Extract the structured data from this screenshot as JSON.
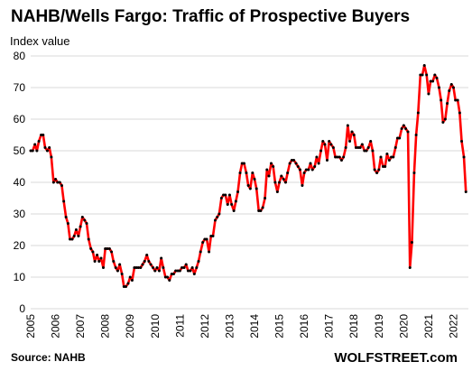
{
  "chart_data": {
    "type": "line",
    "title": "NAHB/Wells Fargo: Traffic of Prospective Buyers",
    "ylabel": "Index value",
    "xlabel": "",
    "ylim": [
      0,
      80
    ],
    "yticks": [
      0,
      10,
      20,
      30,
      40,
      50,
      60,
      70,
      80
    ],
    "xlim": [
      2005,
      2022.6
    ],
    "xticks": [
      "2005",
      "2006",
      "2007",
      "2008",
      "2009",
      "2010",
      "2011",
      "2012",
      "2013",
      "2014",
      "2015",
      "2016",
      "2017",
      "2018",
      "2019",
      "2020",
      "2021",
      "2022"
    ],
    "grid": true,
    "line_color": "#ff0000",
    "marker_color": "#000000",
    "series": [
      {
        "name": "",
        "points": [
          [
            2005.0,
            50
          ],
          [
            2005.08,
            50
          ],
          [
            2005.17,
            52
          ],
          [
            2005.25,
            50
          ],
          [
            2005.33,
            53
          ],
          [
            2005.42,
            55
          ],
          [
            2005.5,
            55
          ],
          [
            2005.58,
            51
          ],
          [
            2005.67,
            50
          ],
          [
            2005.75,
            51
          ],
          [
            2005.83,
            48
          ],
          [
            2005.92,
            40
          ],
          [
            2006.0,
            41
          ],
          [
            2006.08,
            40
          ],
          [
            2006.17,
            40
          ],
          [
            2006.25,
            39
          ],
          [
            2006.33,
            34
          ],
          [
            2006.42,
            29
          ],
          [
            2006.5,
            27
          ],
          [
            2006.58,
            22
          ],
          [
            2006.67,
            22
          ],
          [
            2006.75,
            23
          ],
          [
            2006.83,
            25
          ],
          [
            2006.92,
            23
          ],
          [
            2007.0,
            26
          ],
          [
            2007.08,
            29
          ],
          [
            2007.17,
            28
          ],
          [
            2007.25,
            27
          ],
          [
            2007.33,
            22
          ],
          [
            2007.42,
            19
          ],
          [
            2007.5,
            18
          ],
          [
            2007.58,
            15
          ],
          [
            2007.67,
            17
          ],
          [
            2007.75,
            15
          ],
          [
            2007.83,
            16
          ],
          [
            2007.92,
            13
          ],
          [
            2008.0,
            19
          ],
          [
            2008.08,
            19
          ],
          [
            2008.17,
            19
          ],
          [
            2008.25,
            18
          ],
          [
            2008.33,
            15
          ],
          [
            2008.42,
            13
          ],
          [
            2008.5,
            12
          ],
          [
            2008.58,
            14
          ],
          [
            2008.67,
            11
          ],
          [
            2008.75,
            7
          ],
          [
            2008.83,
            7
          ],
          [
            2008.92,
            8
          ],
          [
            2009.0,
            10
          ],
          [
            2009.08,
            9
          ],
          [
            2009.17,
            13
          ],
          [
            2009.25,
            13
          ],
          [
            2009.33,
            13
          ],
          [
            2009.42,
            13
          ],
          [
            2009.5,
            14
          ],
          [
            2009.58,
            15
          ],
          [
            2009.67,
            17
          ],
          [
            2009.75,
            15
          ],
          [
            2009.83,
            14
          ],
          [
            2009.92,
            13
          ],
          [
            2010.0,
            12
          ],
          [
            2010.08,
            13
          ],
          [
            2010.17,
            12
          ],
          [
            2010.25,
            16
          ],
          [
            2010.33,
            13
          ],
          [
            2010.42,
            10
          ],
          [
            2010.5,
            10
          ],
          [
            2010.58,
            9
          ],
          [
            2010.67,
            11
          ],
          [
            2010.75,
            11
          ],
          [
            2010.83,
            12
          ],
          [
            2010.92,
            12
          ],
          [
            2011.0,
            12
          ],
          [
            2011.08,
            13
          ],
          [
            2011.17,
            13
          ],
          [
            2011.25,
            14
          ],
          [
            2011.33,
            12
          ],
          [
            2011.42,
            12
          ],
          [
            2011.5,
            13
          ],
          [
            2011.58,
            11
          ],
          [
            2011.67,
            13
          ],
          [
            2011.75,
            15
          ],
          [
            2011.83,
            18
          ],
          [
            2011.92,
            21
          ],
          [
            2012.0,
            22
          ],
          [
            2012.08,
            22
          ],
          [
            2012.17,
            18
          ],
          [
            2012.25,
            23
          ],
          [
            2012.33,
            23
          ],
          [
            2012.42,
            28
          ],
          [
            2012.5,
            29
          ],
          [
            2012.58,
            30
          ],
          [
            2012.67,
            35
          ],
          [
            2012.75,
            36
          ],
          [
            2012.83,
            36
          ],
          [
            2012.92,
            33
          ],
          [
            2013.0,
            36
          ],
          [
            2013.08,
            33
          ],
          [
            2013.17,
            31
          ],
          [
            2013.25,
            34
          ],
          [
            2013.33,
            37
          ],
          [
            2013.42,
            43
          ],
          [
            2013.5,
            46
          ],
          [
            2013.58,
            46
          ],
          [
            2013.67,
            43
          ],
          [
            2013.75,
            39
          ],
          [
            2013.83,
            38
          ],
          [
            2013.92,
            43
          ],
          [
            2014.0,
            41
          ],
          [
            2014.08,
            38
          ],
          [
            2014.17,
            31
          ],
          [
            2014.25,
            31
          ],
          [
            2014.33,
            32
          ],
          [
            2014.42,
            35
          ],
          [
            2014.5,
            44
          ],
          [
            2014.58,
            42
          ],
          [
            2014.67,
            46
          ],
          [
            2014.75,
            45
          ],
          [
            2014.83,
            40
          ],
          [
            2014.92,
            37
          ],
          [
            2015.0,
            40
          ],
          [
            2015.08,
            42
          ],
          [
            2015.17,
            41
          ],
          [
            2015.25,
            40
          ],
          [
            2015.33,
            43
          ],
          [
            2015.42,
            46
          ],
          [
            2015.5,
            47
          ],
          [
            2015.58,
            47
          ],
          [
            2015.67,
            46
          ],
          [
            2015.75,
            45
          ],
          [
            2015.83,
            44
          ],
          [
            2015.92,
            39
          ],
          [
            2016.0,
            43
          ],
          [
            2016.08,
            44
          ],
          [
            2016.17,
            44
          ],
          [
            2016.25,
            46
          ],
          [
            2016.33,
            44
          ],
          [
            2016.42,
            45
          ],
          [
            2016.5,
            48
          ],
          [
            2016.58,
            46
          ],
          [
            2016.67,
            50
          ],
          [
            2016.75,
            53
          ],
          [
            2016.83,
            52
          ],
          [
            2016.92,
            47
          ],
          [
            2017.0,
            53
          ],
          [
            2017.08,
            52
          ],
          [
            2017.17,
            51
          ],
          [
            2017.25,
            48
          ],
          [
            2017.33,
            48
          ],
          [
            2017.42,
            48
          ],
          [
            2017.5,
            47
          ],
          [
            2017.58,
            48
          ],
          [
            2017.67,
            51
          ],
          [
            2017.75,
            58
          ],
          [
            2017.83,
            53
          ],
          [
            2017.92,
            56
          ],
          [
            2018.0,
            55
          ],
          [
            2018.08,
            51
          ],
          [
            2018.17,
            51
          ],
          [
            2018.25,
            51
          ],
          [
            2018.33,
            52
          ],
          [
            2018.42,
            50
          ],
          [
            2018.5,
            50
          ],
          [
            2018.58,
            51
          ],
          [
            2018.67,
            53
          ],
          [
            2018.75,
            50
          ],
          [
            2018.83,
            44
          ],
          [
            2018.92,
            43
          ],
          [
            2019.0,
            44
          ],
          [
            2019.08,
            48
          ],
          [
            2019.17,
            45
          ],
          [
            2019.25,
            45
          ],
          [
            2019.33,
            49
          ],
          [
            2019.42,
            47
          ],
          [
            2019.5,
            48
          ],
          [
            2019.58,
            48
          ],
          [
            2019.67,
            51
          ],
          [
            2019.75,
            54
          ],
          [
            2019.83,
            54
          ],
          [
            2019.92,
            57
          ],
          [
            2020.0,
            58
          ],
          [
            2020.08,
            57
          ],
          [
            2020.17,
            56
          ],
          [
            2020.25,
            13
          ],
          [
            2020.33,
            21
          ],
          [
            2020.42,
            43
          ],
          [
            2020.5,
            55
          ],
          [
            2020.58,
            62
          ],
          [
            2020.67,
            74
          ],
          [
            2020.75,
            74
          ],
          [
            2020.83,
            77
          ],
          [
            2020.92,
            74
          ],
          [
            2021.0,
            68
          ],
          [
            2021.08,
            72
          ],
          [
            2021.17,
            72
          ],
          [
            2021.25,
            74
          ],
          [
            2021.33,
            73
          ],
          [
            2021.42,
            70
          ],
          [
            2021.5,
            66
          ],
          [
            2021.58,
            59
          ],
          [
            2021.67,
            60
          ],
          [
            2021.75,
            65
          ],
          [
            2021.83,
            69
          ],
          [
            2021.92,
            71
          ],
          [
            2022.0,
            70
          ],
          [
            2022.08,
            66
          ],
          [
            2022.17,
            66
          ],
          [
            2022.25,
            62
          ],
          [
            2022.33,
            53
          ],
          [
            2022.42,
            48
          ],
          [
            2022.5,
            37
          ]
        ]
      }
    ]
  },
  "footer": {
    "source": "Source: NAHB",
    "brand": "WOLFSTREET.com"
  }
}
